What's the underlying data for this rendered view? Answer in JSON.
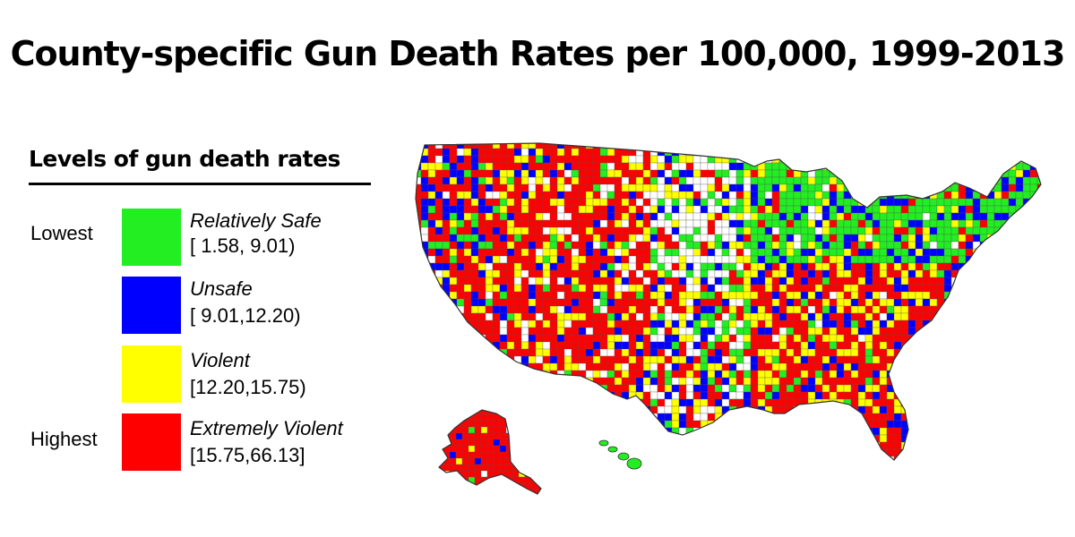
{
  "title": "County-specific Gun Death Rates per 100,000, 1999-2013",
  "legend": {
    "heading": "Levels of gun death rates",
    "low_label": "Lowest",
    "high_label": "Highest",
    "categories": [
      {
        "name": "Relatively Safe",
        "range": "[ 1.58, 9.01)",
        "color": "#22ee22"
      },
      {
        "name": "Unsafe",
        "range": "[ 9.01,12.20)",
        "color": "#0000ff"
      },
      {
        "name": "Violent",
        "range": "[12.20,15.75)",
        "color": "#ffff00"
      },
      {
        "name": "Extremely Violent",
        "range": "[15.75,66.13]",
        "color": "#ff0000"
      }
    ]
  },
  "colors": {
    "no_data": "#ffffff",
    "county_border": "#555555"
  }
}
